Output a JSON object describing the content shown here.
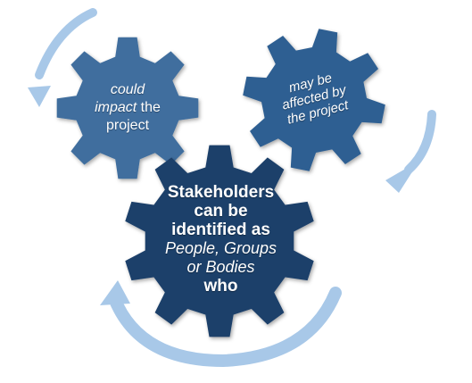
{
  "colors": {
    "gear_left": "#3f6e9e",
    "gear_right": "#2e5f92",
    "gear_center": "#1f416b",
    "arrow": "#a8c8e8",
    "text": "#ffffff"
  },
  "gears": {
    "left": {
      "line1": "could",
      "line2_italic": "impact",
      "line2_rest": " the",
      "line3": "project"
    },
    "right": {
      "line1": "may be",
      "line2": "affected by",
      "line3": "the project"
    },
    "center": {
      "line1": "Stakeholders",
      "line2": "can be",
      "line3": "identified as",
      "line4": "People, Groups",
      "line5": "or Bodies",
      "line6": "who"
    }
  },
  "arrows": [
    "top-left-curved-arrow-icon",
    "right-curved-arrow-icon",
    "bottom-curved-arrow-icon"
  ]
}
